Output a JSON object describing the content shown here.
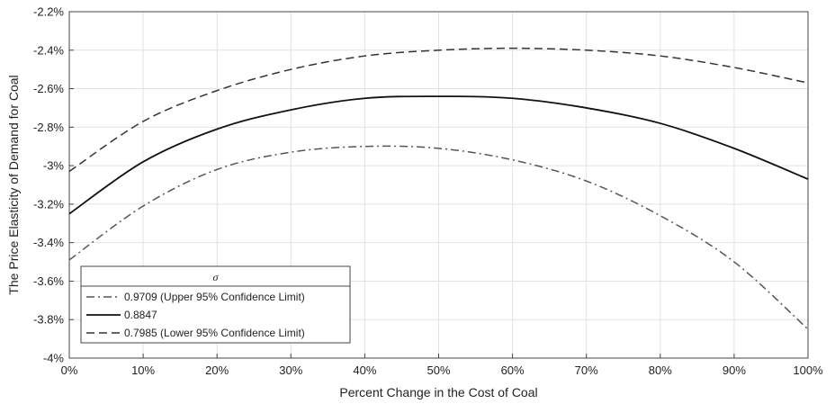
{
  "chart_data": {
    "type": "line",
    "xlabel": "Percent Change in the Cost of Coal",
    "ylabel": "The Price Elasticity of Demand for Coal",
    "xlim": [
      0,
      100
    ],
    "ylim": [
      -4.0,
      -2.2
    ],
    "x_ticks": [
      0,
      10,
      20,
      30,
      40,
      50,
      60,
      70,
      80,
      90,
      100
    ],
    "x_tick_labels": [
      "0%",
      "10%",
      "20%",
      "30%",
      "40%",
      "50%",
      "60%",
      "70%",
      "80%",
      "90%",
      "100%"
    ],
    "y_ticks": [
      -2.2,
      -2.4,
      -2.6,
      -2.8,
      -3.0,
      -3.2,
      -3.4,
      -3.6,
      -3.8,
      -4.0
    ],
    "y_tick_labels": [
      "-2.2%",
      "-2.4%",
      "-2.6%",
      "-2.8%",
      "-3%",
      "-3.2%",
      "-3.4%",
      "-3.6%",
      "-3.8%",
      "-4%"
    ],
    "grid": true,
    "legend": {
      "title": "σ",
      "placement": "bottom-left"
    },
    "x": [
      0,
      10,
      20,
      30,
      40,
      50,
      60,
      70,
      80,
      90,
      100
    ],
    "series": [
      {
        "name": "0.9709 (Upper 95% Confidence Limit)",
        "style": "dashdot",
        "color": "#555555",
        "values": [
          -3.49,
          -3.21,
          -3.02,
          -2.93,
          -2.9,
          -2.91,
          -2.97,
          -3.08,
          -3.26,
          -3.5,
          -3.85
        ]
      },
      {
        "name": "0.8847",
        "style": "solid",
        "color": "#111111",
        "values": [
          -3.25,
          -2.98,
          -2.81,
          -2.71,
          -2.65,
          -2.64,
          -2.65,
          -2.7,
          -2.78,
          -2.91,
          -3.07
        ]
      },
      {
        "name": "0.7985 (Lower 95% Confidence Limit)",
        "style": "dashed",
        "color": "#333333",
        "values": [
          -3.03,
          -2.77,
          -2.61,
          -2.5,
          -2.43,
          -2.4,
          -2.39,
          -2.4,
          -2.43,
          -2.49,
          -2.57
        ]
      }
    ]
  }
}
